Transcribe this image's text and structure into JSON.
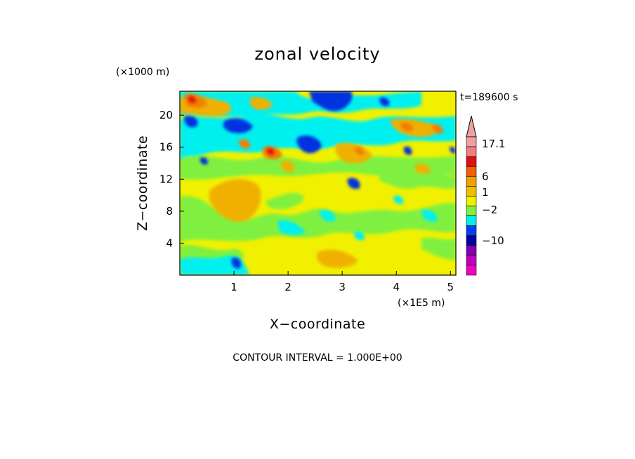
{
  "chart_data": {
    "type": "heatmap",
    "title": "zonal velocity",
    "xlabel": "X−coordinate",
    "ylabel": "Z−coordinate",
    "x_unit": "(×1E5 m)",
    "y_unit": "(×1000 m)",
    "x_ticks": [
      1,
      2,
      3,
      4,
      5
    ],
    "y_ticks": [
      4,
      8,
      12,
      16,
      20
    ],
    "xlim": [
      0,
      5.1
    ],
    "ylim": [
      0,
      23
    ],
    "time_label": "t=189600 s",
    "footer_note": "CONTOUR INTERVAL = 1.000E+00",
    "colorbar": {
      "labels": [
        "17.1",
        "6",
        "1",
        "−2",
        "−10"
      ],
      "label_values": [
        17.1,
        6,
        1,
        -2,
        -10
      ],
      "colors_top_to_bottom": [
        "#f0a0a0",
        "#f08080",
        "#e01010",
        "#f06000",
        "#f0a000",
        "#f0c000",
        "#f0f000",
        "#80f040",
        "#00f0f0",
        "#0040f0",
        "#0000a0",
        "#8000b0",
        "#c000c0",
        "#f000c0"
      ]
    },
    "grid": false,
    "description": "2D contour field of zonal velocity; dominant values yellow (~0 to 1), orange patches (~3 to 6), cyan/blue negatives concentrated near top and lower-left."
  },
  "palette": {
    "red": "#e01010",
    "orange": "#f09000",
    "light_orange": "#f0b000",
    "yellow": "#f0f000",
    "green": "#80f040",
    "cyan": "#00f0f0",
    "blue": "#0030e0",
    "navy": "#0000a0"
  }
}
